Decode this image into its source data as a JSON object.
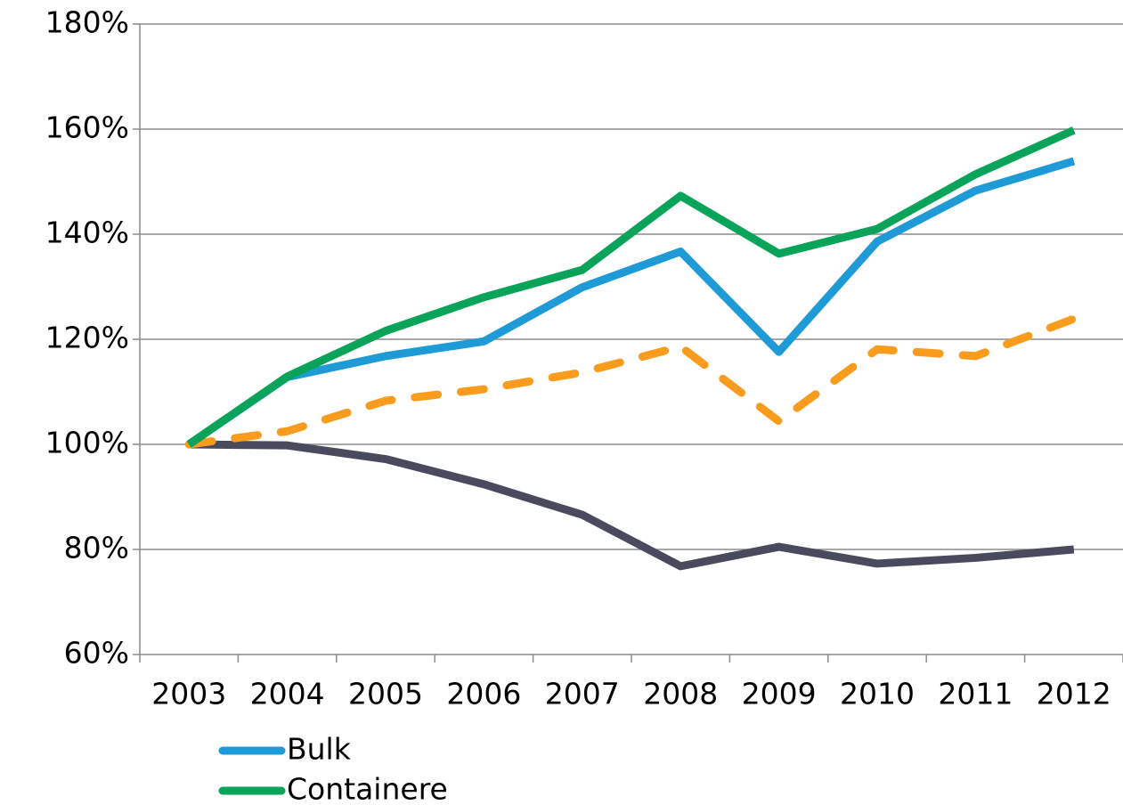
{
  "chart_data": {
    "type": "line",
    "categories": [
      "2003",
      "2004",
      "2005",
      "2006",
      "2007",
      "2008",
      "2009",
      "2010",
      "2011",
      "2012"
    ],
    "series": [
      {
        "name": "Bulk",
        "color": "#1e9ad6",
        "values": [
          100,
          112.8,
          116.8,
          119.6,
          129.9,
          136.7,
          117.6,
          138.6,
          148.3,
          153.9
        ]
      },
      {
        "name": "Containere",
        "color": "#0aa35a",
        "values": [
          100,
          112.9,
          121.6,
          128.0,
          133.2,
          147.3,
          136.3,
          141.0,
          151.4,
          159.8
        ]
      },
      {
        "color": "#f99b1c",
        "dashed": true,
        "values": [
          100,
          102.5,
          108.3,
          110.5,
          113.7,
          118.6,
          104.4,
          118.1,
          116.8,
          123.9
        ]
      },
      {
        "color": "#4a4a5e",
        "values": [
          100,
          99.8,
          97.2,
          92.4,
          86.6,
          76.8,
          80.5,
          77.3,
          78.4,
          80.0
        ]
      }
    ],
    "ylim": [
      60,
      180
    ],
    "yticks": [
      {
        "value": 60,
        "label": "60%"
      },
      {
        "value": 80,
        "label": "80%"
      },
      {
        "value": 100,
        "label": "100%"
      },
      {
        "value": 120,
        "label": "120%"
      },
      {
        "value": 140,
        "label": "140%"
      },
      {
        "value": 160,
        "label": "160%"
      },
      {
        "value": 180,
        "label": "180%"
      }
    ],
    "grid": true
  }
}
